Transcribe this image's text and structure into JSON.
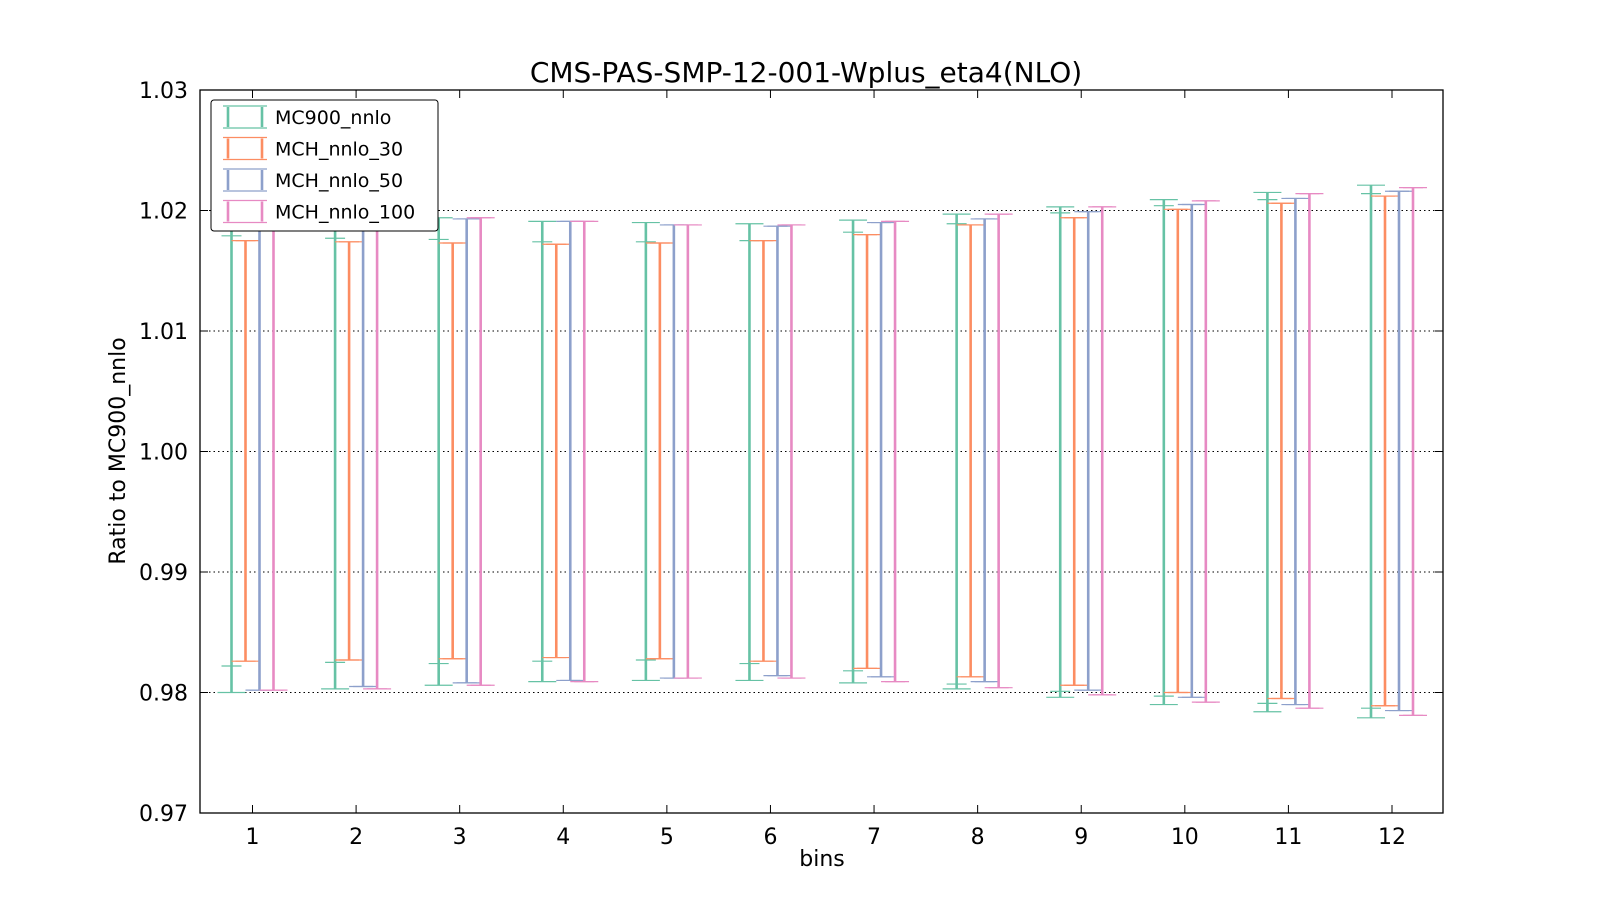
{
  "chart_data": {
    "type": "errorbar",
    "title": "CMS-PAS-SMP-12-001-Wplus_eta4(NLO)",
    "xlabel": "bins",
    "ylabel": "Ratio to MC900_nnlo",
    "categories": [
      "1",
      "2",
      "3",
      "4",
      "5",
      "6",
      "7",
      "8",
      "9",
      "10",
      "11",
      "12"
    ],
    "y_ticks": [
      "0.97",
      "0.98",
      "0.99",
      "1.00",
      "1.01",
      "1.02",
      "1.03"
    ],
    "ylim": [
      0.97,
      1.03
    ],
    "grid": "horizontal-dotted",
    "legend_position": "top-left",
    "series": [
      {
        "name": "MC900_nnlo",
        "color": "#66c2a5",
        "upper": [
          1.0198,
          1.0196,
          1.0194,
          1.0191,
          1.019,
          1.0189,
          1.0192,
          1.0197,
          1.0203,
          1.0209,
          1.0215,
          1.0221
        ],
        "upper_inner": [
          1.0179,
          1.0177,
          1.0176,
          1.0174,
          1.0174,
          1.0175,
          1.0182,
          1.0189,
          1.0198,
          1.0204,
          1.0209,
          1.0214
        ],
        "lower": [
          0.98,
          0.9803,
          0.9806,
          0.9809,
          0.981,
          0.981,
          0.9808,
          0.9803,
          0.9796,
          0.979,
          0.9784,
          0.9779
        ],
        "lower_inner": [
          0.9822,
          0.9825,
          0.9824,
          0.9826,
          0.9827,
          0.9824,
          0.9818,
          0.9807,
          0.9801,
          0.9797,
          0.9791,
          0.9787
        ]
      },
      {
        "name": "MCH_nnlo_30",
        "color": "#fc8d62",
        "upper": [
          1.0175,
          1.0174,
          1.0173,
          1.0172,
          1.0173,
          1.0175,
          1.018,
          1.0188,
          1.0194,
          1.0201,
          1.0206,
          1.0212
        ],
        "upper_inner": [
          1.0175,
          1.0174,
          1.0173,
          1.0172,
          1.0173,
          1.0175,
          1.018,
          1.0188,
          1.0194,
          1.0201,
          1.0206,
          1.0212
        ],
        "lower": [
          0.9826,
          0.9827,
          0.9828,
          0.9829,
          0.9828,
          0.9826,
          0.982,
          0.9813,
          0.9806,
          0.98,
          0.9795,
          0.9789
        ],
        "lower_inner": [
          0.9826,
          0.9827,
          0.9828,
          0.9829,
          0.9828,
          0.9826,
          0.982,
          0.9813,
          0.9806,
          0.98,
          0.9795,
          0.9789
        ]
      },
      {
        "name": "MCH_nnlo_50",
        "color": "#8da0cb",
        "upper": [
          1.0197,
          1.0196,
          1.0193,
          1.0191,
          1.0188,
          1.0187,
          1.019,
          1.0193,
          1.0199,
          1.0205,
          1.021,
          1.0216
        ],
        "upper_inner": [
          1.0197,
          1.0196,
          1.0193,
          1.0191,
          1.0188,
          1.0187,
          1.019,
          1.0193,
          1.0199,
          1.0205,
          1.021,
          1.0216
        ],
        "lower": [
          0.9802,
          0.9805,
          0.9808,
          0.981,
          0.9812,
          0.9814,
          0.9813,
          0.9809,
          0.9802,
          0.9796,
          0.979,
          0.9785
        ],
        "lower_inner": [
          0.9802,
          0.9805,
          0.9808,
          0.981,
          0.9812,
          0.9814,
          0.9813,
          0.9809,
          0.9802,
          0.9796,
          0.979,
          0.9785
        ]
      },
      {
        "name": "MCH_nnlo_100",
        "color": "#e78ac3",
        "upper": [
          1.0197,
          1.0196,
          1.0194,
          1.0191,
          1.0188,
          1.0188,
          1.0191,
          1.0197,
          1.0203,
          1.0208,
          1.0214,
          1.0219
        ],
        "upper_inner": [
          1.0197,
          1.0196,
          1.0194,
          1.0191,
          1.0188,
          1.0188,
          1.0191,
          1.0197,
          1.0203,
          1.0208,
          1.0214,
          1.0219
        ],
        "lower": [
          0.9802,
          0.9803,
          0.9806,
          0.9809,
          0.9812,
          0.9812,
          0.9809,
          0.9804,
          0.9798,
          0.9792,
          0.9787,
          0.9781
        ],
        "lower_inner": [
          0.9802,
          0.9803,
          0.9806,
          0.9809,
          0.9812,
          0.9812,
          0.9809,
          0.9804,
          0.9798,
          0.9792,
          0.9787,
          0.9781
        ]
      }
    ]
  }
}
